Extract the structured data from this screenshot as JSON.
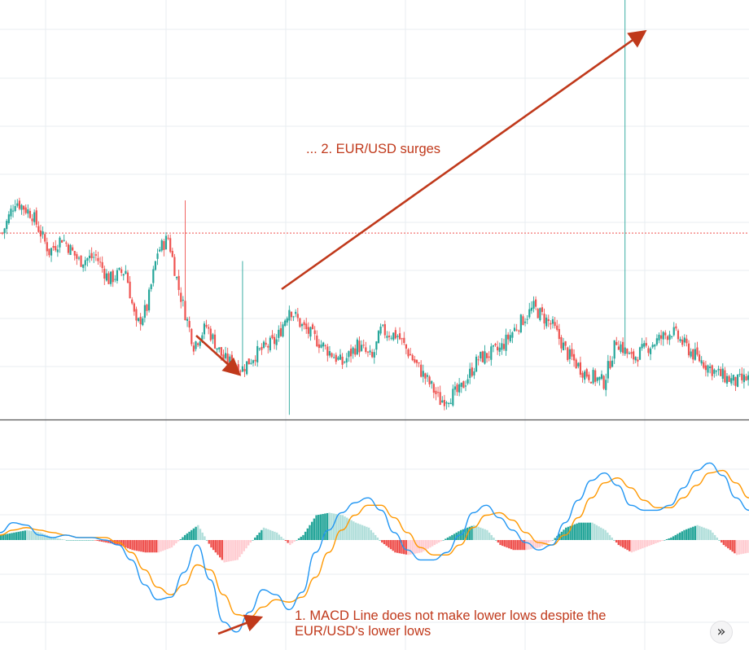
{
  "annotations": {
    "surge": "... 2. EUR/USD surges",
    "macd_line1": "1. MACD Line does not make lower lows despite the",
    "macd_line2": "EUR/USD's lower lows"
  },
  "controls": {
    "scroll_icon": "double-chevron-right-icon",
    "scroll_glyph": "»"
  },
  "colors": {
    "up": "#26a69a",
    "down": "#ef5350",
    "hist_up_strong": "#26a69a",
    "hist_up_weak": "#b2dfdb",
    "hist_down_strong": "#ef5350",
    "hist_down_weak": "#ffcdd2",
    "macd_line": "#2196f3",
    "signal_line": "#ff9800",
    "annotation": "#c0391b",
    "grid": "#e9eef2",
    "reference_line": "#ef5350",
    "divider": "#555555"
  },
  "chart_data": [
    {
      "type": "candlestick",
      "title": "",
      "xlabel": "",
      "ylabel": "",
      "reference_line_level": 100,
      "ylim": [
        60,
        150
      ],
      "grid": true,
      "close_path": [
        [
          0,
          100
        ],
        [
          6,
          107
        ],
        [
          14,
          104
        ],
        [
          22,
          96
        ],
        [
          28,
          99
        ],
        [
          36,
          94
        ],
        [
          44,
          95
        ],
        [
          50,
          90
        ],
        [
          58,
          92
        ],
        [
          63,
          80
        ],
        [
          68,
          84
        ],
        [
          73,
          96
        ],
        [
          78,
          99
        ],
        [
          83,
          88
        ],
        [
          90,
          76
        ],
        [
          96,
          80
        ],
        [
          104,
          73
        ],
        [
          113,
          71
        ],
        [
          119,
          74
        ],
        [
          129,
          77
        ],
        [
          135,
          84
        ],
        [
          141,
          80
        ],
        [
          148,
          77
        ],
        [
          160,
          72
        ],
        [
          167,
          76
        ],
        [
          174,
          73
        ],
        [
          178,
          79
        ],
        [
          186,
          78
        ],
        [
          193,
          73
        ],
        [
          202,
          67
        ],
        [
          206,
          64
        ],
        [
          215,
          66
        ],
        [
          224,
          73
        ],
        [
          234,
          75
        ],
        [
          242,
          80
        ],
        [
          250,
          84
        ],
        [
          259,
          80
        ],
        [
          266,
          74
        ],
        [
          274,
          70
        ],
        [
          283,
          68
        ],
        [
          289,
          77
        ],
        [
          296,
          73
        ],
        [
          305,
          76
        ],
        [
          315,
          79
        ],
        [
          325,
          74
        ],
        [
          336,
          70
        ],
        [
          345,
          68
        ],
        [
          352,
          69
        ]
      ],
      "seed": 7
    },
    {
      "type": "macd",
      "series": [
        {
          "name": "",
          "values": [
            3,
            7,
            6,
            2,
            1,
            2,
            1,
            1,
            0,
            -2,
            -8,
            -18,
            -24,
            -23,
            -13,
            -2,
            -16,
            -33,
            -37,
            -29,
            -20,
            -22,
            -28,
            -21,
            -5,
            4,
            11,
            15,
            17,
            12,
            3,
            -4,
            -8,
            -8,
            -5,
            2,
            11,
            14,
            9,
            4,
            -1,
            -4,
            -2,
            7,
            16,
            24,
            27,
            22,
            14,
            12,
            12,
            14,
            21,
            28,
            31,
            26,
            17,
            12
          ]
        },
        {
          "name": "",
          "values": [
            2,
            4,
            5,
            4,
            3,
            2,
            1,
            1,
            1,
            -1,
            -5,
            -12,
            -19,
            -22,
            -18,
            -10,
            -12,
            -22,
            -30,
            -31,
            -27,
            -24,
            -25,
            -23,
            -15,
            -5,
            4,
            10,
            14,
            14,
            9,
            3,
            -3,
            -6,
            -6,
            -2,
            5,
            10,
            11,
            8,
            3,
            -1,
            -2,
            2,
            9,
            17,
            23,
            25,
            21,
            16,
            13,
            13,
            17,
            22,
            27,
            28,
            23,
            17
          ]
        }
      ],
      "histogram": [
        2,
        3,
        4,
        3,
        1,
        0,
        0,
        0,
        -1,
        -2,
        -4,
        -5,
        -5,
        -3,
        2,
        6,
        -3,
        -9,
        -8,
        -1,
        5,
        3,
        -2,
        2,
        10,
        11,
        10,
        7,
        5,
        -1,
        -5,
        -6,
        -5,
        -2,
        1,
        4,
        6,
        4,
        -2,
        -4,
        -4,
        -3,
        0,
        5,
        7,
        7,
        4,
        -2,
        -5,
        -3,
        -1,
        1,
        4,
        6,
        4,
        -2,
        -6,
        -5
      ],
      "grid": true
    }
  ]
}
